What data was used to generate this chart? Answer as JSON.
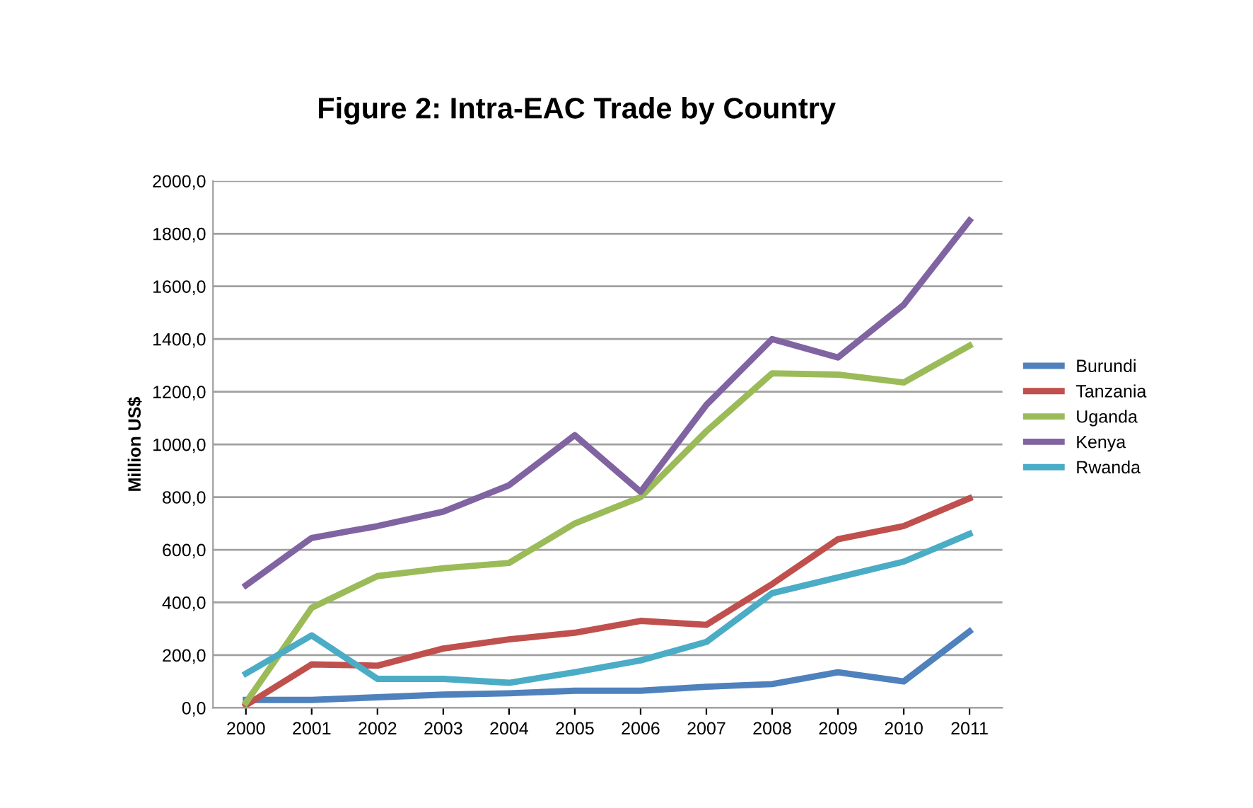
{
  "chart_data": {
    "type": "line",
    "title": "Figure 2: Intra-EAC Trade by Country",
    "ylabel": "Million US$",
    "categories": [
      "2000",
      "2001",
      "2002",
      "2003",
      "2004",
      "2005",
      "2006",
      "2007",
      "2008",
      "2009",
      "2010",
      "2011"
    ],
    "series": [
      {
        "name": "Burundi",
        "color": "#4f81bd",
        "values": [
          30,
          30,
          40,
          50,
          55,
          65,
          65,
          80,
          90,
          135,
          100,
          290
        ]
      },
      {
        "name": "Tanzania",
        "color": "#c0504d",
        "values": [
          10,
          165,
          160,
          225,
          260,
          285,
          330,
          315,
          470,
          640,
          690,
          795
        ]
      },
      {
        "name": "Uganda",
        "color": "#9bbb59",
        "values": [
          20,
          380,
          500,
          530,
          550,
          700,
          800,
          1050,
          1270,
          1265,
          1235,
          1375
        ]
      },
      {
        "name": "Kenya",
        "color": "#8064a2",
        "values": [
          465,
          645,
          690,
          745,
          845,
          1035,
          820,
          1150,
          1400,
          1330,
          1530,
          1850
        ]
      },
      {
        "name": "Rwanda",
        "color": "#4bacc6",
        "values": [
          130,
          275,
          110,
          110,
          95,
          135,
          180,
          250,
          435,
          495,
          555,
          660
        ]
      }
    ],
    "ylim": [
      0,
      2000
    ],
    "yticks": [
      {
        "value": 0,
        "label": "0,0"
      },
      {
        "value": 200,
        "label": "200,0"
      },
      {
        "value": 400,
        "label": "400,0"
      },
      {
        "value": 600,
        "label": "600,0"
      },
      {
        "value": 800,
        "label": "800,0"
      },
      {
        "value": 1000,
        "label": "1000,0"
      },
      {
        "value": 1200,
        "label": "1200,0"
      },
      {
        "value": 1400,
        "label": "1400,0"
      },
      {
        "value": 1600,
        "label": "1600,0"
      },
      {
        "value": 1800,
        "label": "1800,0"
      },
      {
        "value": 2000,
        "label": "2000,0"
      }
    ],
    "grid": "y",
    "legend": "right",
    "marker": "none",
    "line_style": "solid"
  }
}
